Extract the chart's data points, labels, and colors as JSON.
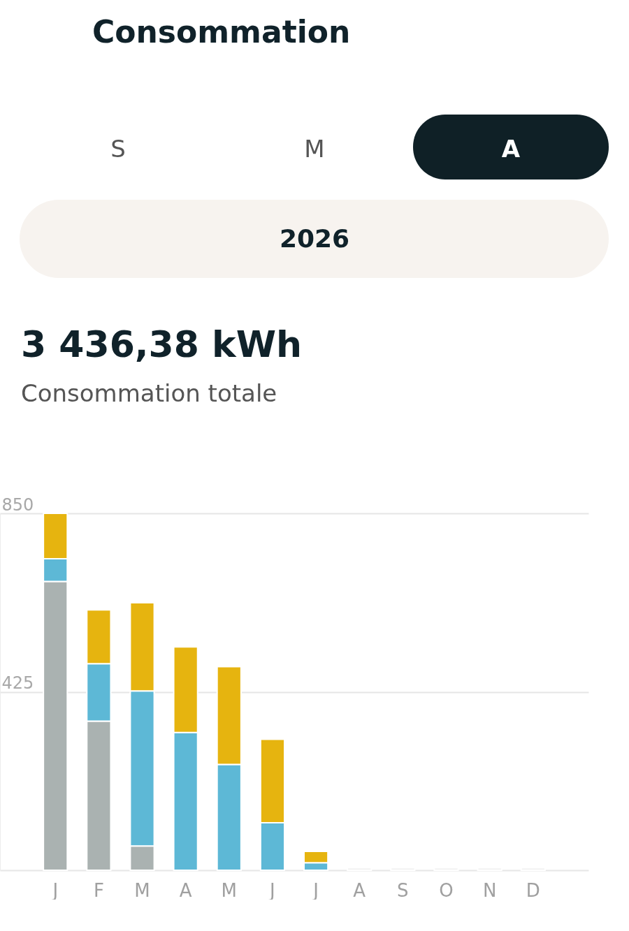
{
  "chart_data": {
    "type": "bar",
    "title": "Consommation",
    "subtitle": "2026",
    "annotations": [
      "S",
      "M",
      "A",
      "3 436,38 kWh",
      "Consommation totale"
    ],
    "categories": [
      "J",
      "F",
      "M",
      "A",
      "M",
      "J",
      "J",
      "A",
      "S",
      "O",
      "N",
      "D"
    ],
    "stacked": true,
    "series": [
      {
        "color": "#aab2b1",
        "values": [
          688,
          355,
          58,
          0,
          0,
          0,
          0,
          null,
          null,
          null,
          null,
          null
        ]
      },
      {
        "color": "#5db8d6",
        "values": [
          54,
          137,
          369,
          328,
          252,
          113,
          18,
          null,
          null,
          null,
          null,
          null
        ]
      },
      {
        "color": "#e6b40f",
        "values": [
          108,
          128,
          210,
          204,
          233,
          199,
          27,
          null,
          null,
          null,
          null,
          null
        ]
      },
      {
        "color": "#eeeeee",
        "values": [
          null,
          null,
          null,
          null,
          null,
          null,
          null,
          6,
          6,
          6,
          6,
          6
        ]
      }
    ],
    "ylim": [
      0,
      850
    ],
    "yticks": [
      {
        "value": 0,
        "label": null
      },
      425,
      850
    ],
    "grid": "y"
  }
}
